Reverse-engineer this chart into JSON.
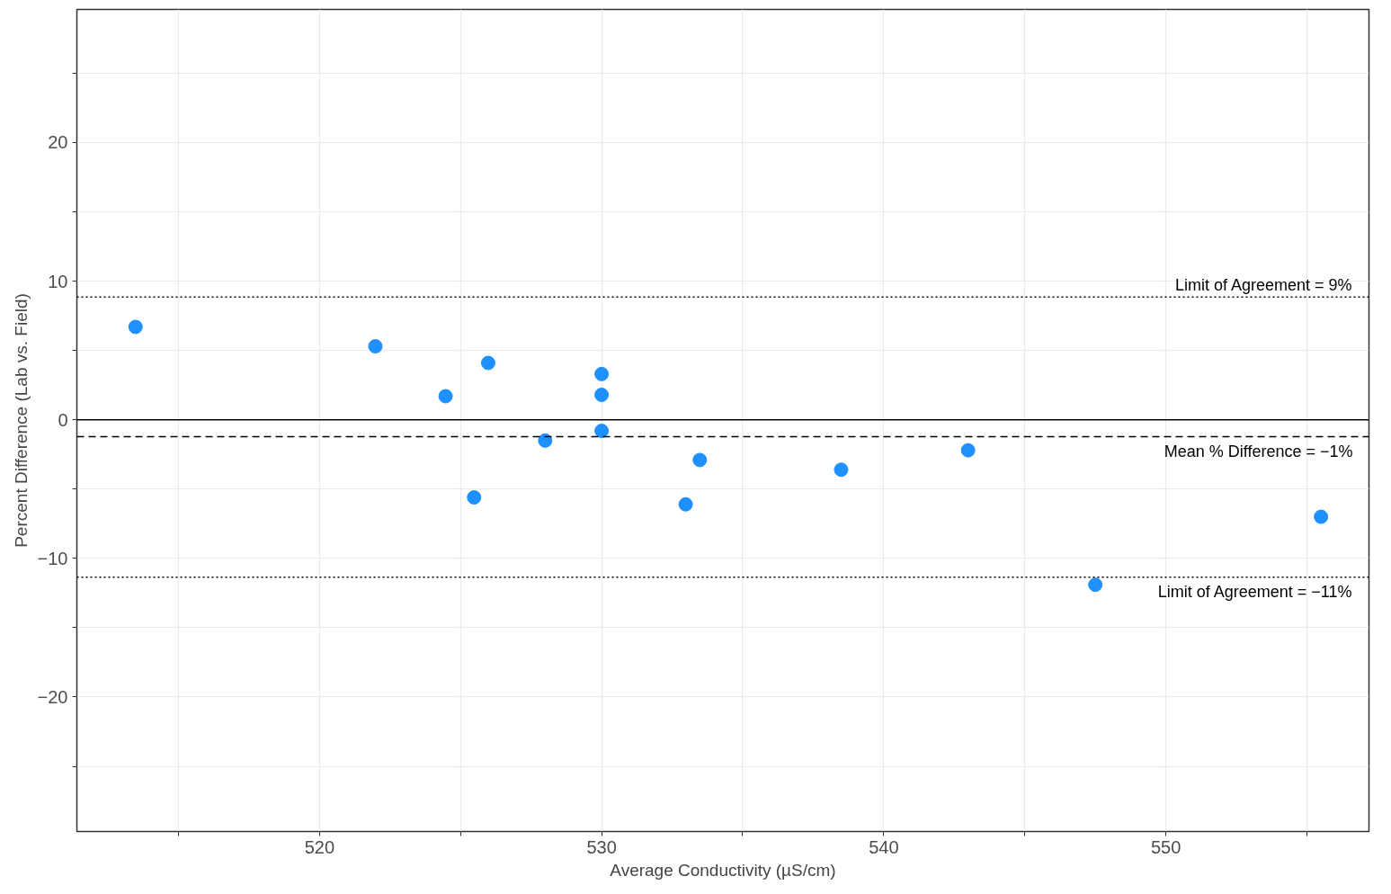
{
  "chart_data": {
    "type": "scatter",
    "xlabel": "Average Conductivity (µS/cm)",
    "ylabel": "Percent Difference (Lab vs. Field)",
    "x": [
      513.48,
      521.98,
      524.47,
      525.98,
      525.48,
      528.0,
      530.0,
      530.0,
      530.0,
      533.48,
      532.98,
      538.49,
      542.99,
      547.5,
      555.5
    ],
    "series": [
      {
        "color": "#1e90ff",
        "values": [
          6.7,
          5.3,
          1.7,
          4.1,
          -5.6,
          -1.5,
          3.3,
          1.8,
          -0.8,
          -2.9,
          -6.1,
          -3.6,
          -2.2,
          -11.9,
          -7.0
        ]
      }
    ],
    "marker": "circle",
    "grid": true,
    "xlim": [
      511.4,
      557.2
    ],
    "ylim": [
      -29.7,
      29.6
    ],
    "xticks": [
      {
        "value": 515,
        "label": null
      },
      520,
      {
        "value": 525,
        "label": null
      },
      530,
      {
        "value": 535,
        "label": null
      },
      540,
      {
        "value": 545,
        "label": null
      },
      550,
      {
        "value": 555,
        "label": null
      }
    ],
    "yticks": [
      {
        "value": -25,
        "label": null
      },
      {
        "value": -20,
        "label": "−20"
      },
      {
        "value": -15,
        "label": null
      },
      {
        "value": -10,
        "label": "−10"
      },
      {
        "value": -5,
        "label": null
      },
      0,
      {
        "value": 5,
        "label": null
      },
      10,
      {
        "value": 15,
        "label": null
      },
      20,
      {
        "value": 25,
        "label": null
      }
    ],
    "ref_lines": [
      {
        "axis": "y",
        "value": 0,
        "label": null,
        "color": "#000000",
        "line_style": "solid"
      },
      {
        "axis": "y",
        "value": 8.85,
        "label": "Limit of Agreement = 9%",
        "color": "#000000",
        "line_style": "dotted"
      },
      {
        "axis": "y",
        "value": -1.22,
        "label": "Mean % Difference = −1%",
        "color": "#000000",
        "line_style": "dashed"
      },
      {
        "axis": "y",
        "value": -11.35,
        "label": "Limit of Agreement = −11%",
        "color": "#000000",
        "line_style": "dotted"
      }
    ]
  }
}
